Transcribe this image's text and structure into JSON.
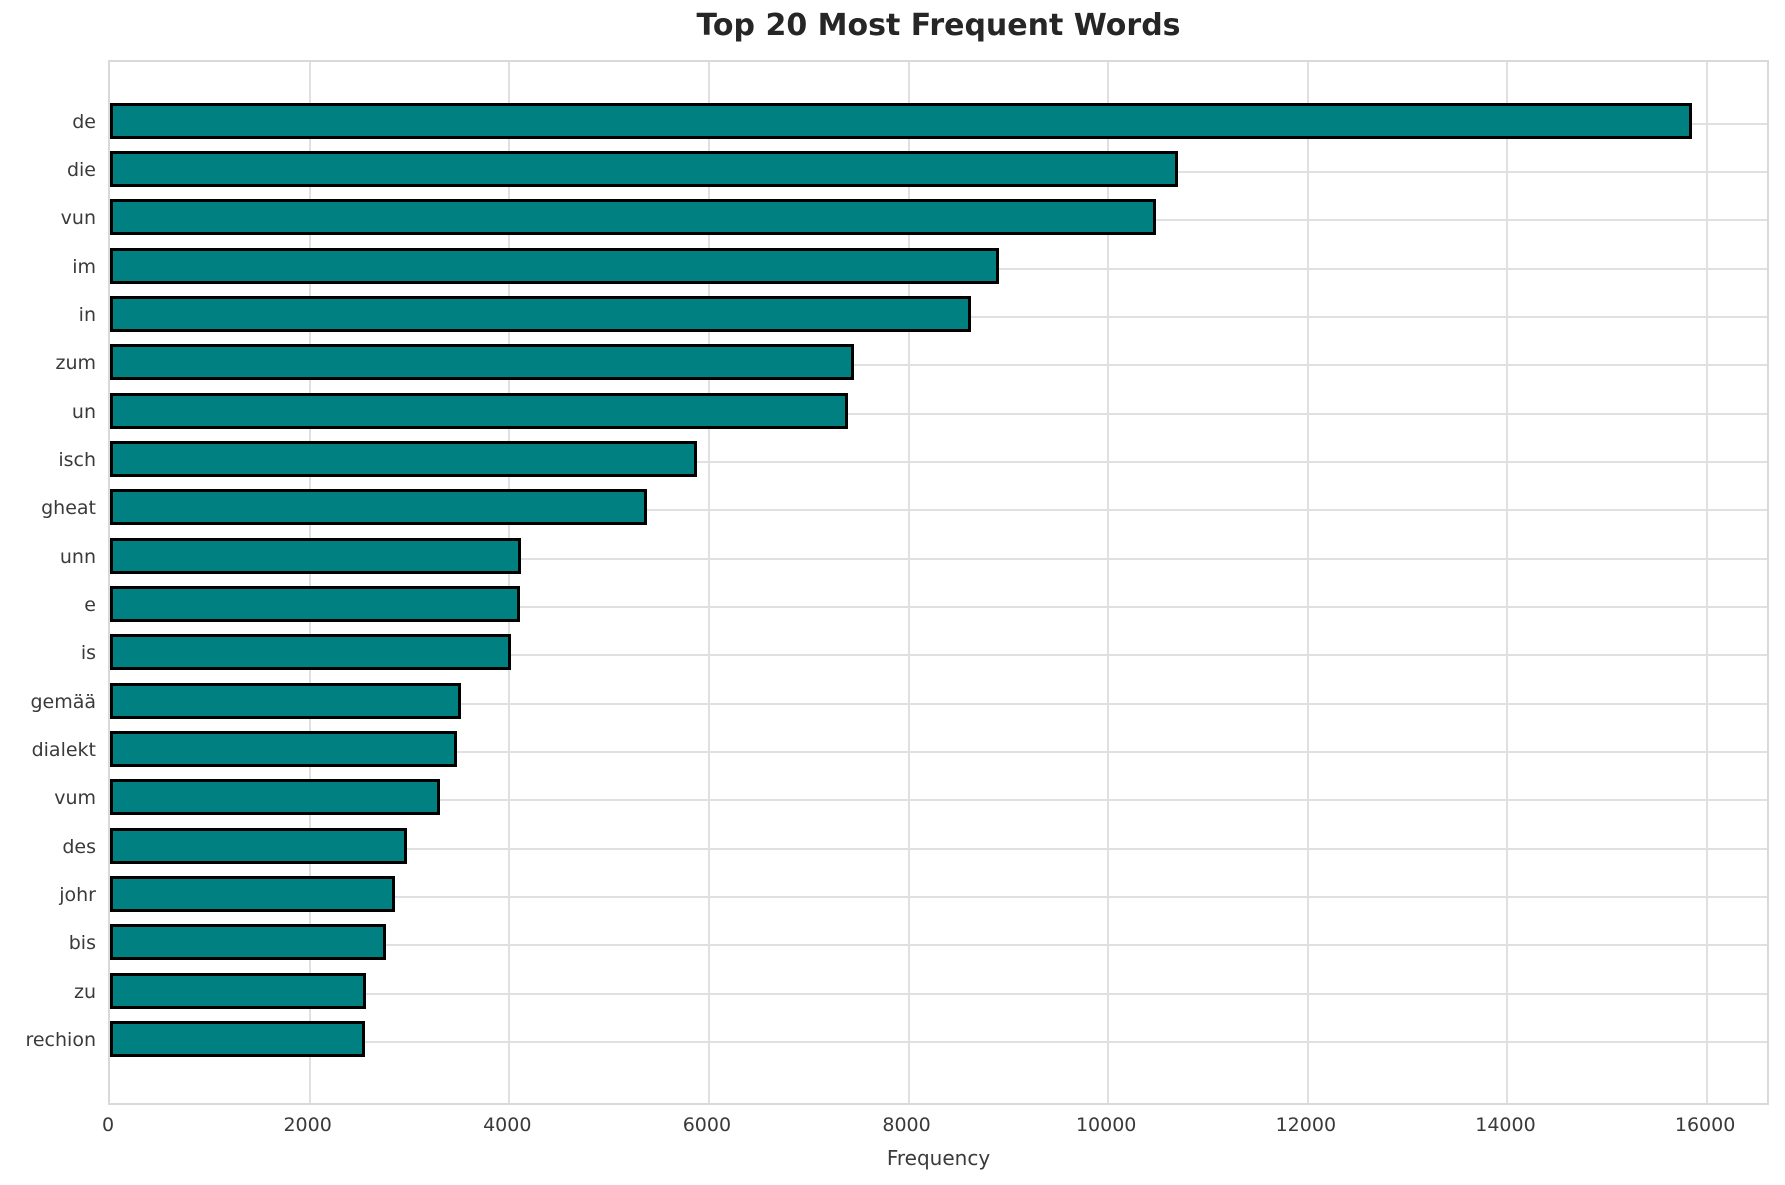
{
  "chart_data": {
    "type": "bar",
    "orientation": "horizontal",
    "title": "Top 20 Most Frequent Words",
    "xlabel": "Frequency",
    "ylabel": "",
    "categories": [
      "de",
      "die",
      "vun",
      "im",
      "in",
      "zum",
      "un",
      "isch",
      "gheat",
      "unn",
      "e",
      "is",
      "gemää",
      "dialekt",
      "vum",
      "des",
      "johr",
      "bis",
      "zu",
      "rechion"
    ],
    "values": [
      15850,
      10700,
      10475,
      8905,
      8630,
      7455,
      7395,
      5885,
      5375,
      4120,
      4110,
      4015,
      3515,
      3480,
      3305,
      2980,
      2855,
      2760,
      2565,
      2550
    ],
    "xlim": [
      0,
      16640
    ],
    "xticks": [
      0,
      2000,
      4000,
      6000,
      8000,
      10000,
      12000,
      14000,
      16000
    ],
    "grid": true,
    "legend": "none",
    "bar_color": "#008080",
    "bar_edge_color": "#000000",
    "grid_color": "#e0e0e0",
    "spine_color": "#d9d9d9",
    "text_color": "#3a3a3a",
    "title_color": "#262626",
    "background_color": "#ffffff"
  }
}
